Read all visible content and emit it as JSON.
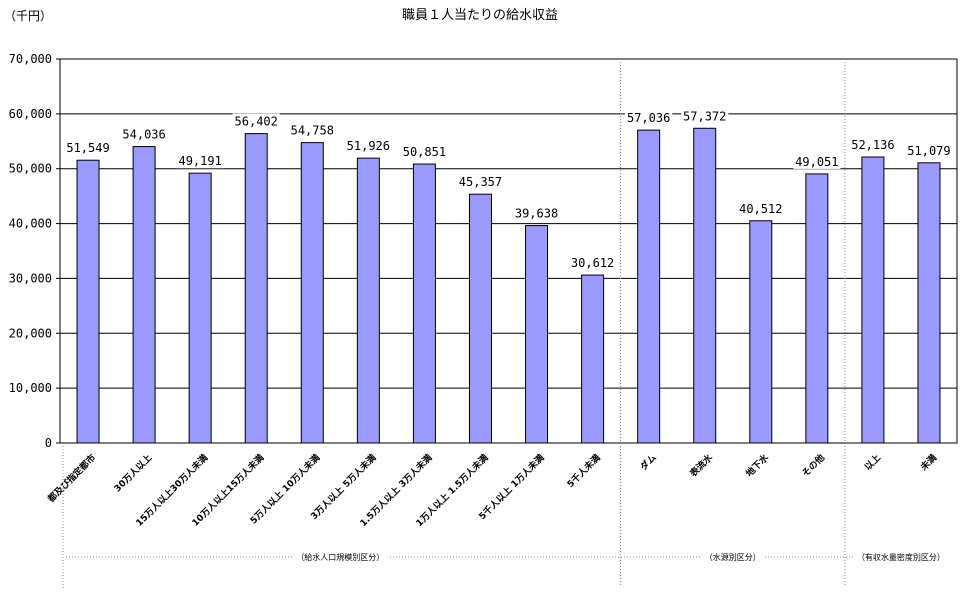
{
  "chart_data": {
    "type": "bar",
    "title": "職員１人当たりの給水収益",
    "unit_label": "（千円）",
    "ylim": [
      0,
      70000
    ],
    "y_ticks": [
      "0",
      "10,000",
      "20,000",
      "30,000",
      "40,000",
      "50,000",
      "60,000",
      "70,000"
    ],
    "grid": true,
    "bar_color": "#9999ff",
    "categories": [
      "都及び指定都市",
      "30万人以上",
      "15万人以上30万人未満",
      "10万人以上15万人未満",
      "5万人以上 10万人未満",
      "3万人以上 5万人未満",
      "1.5万人以上 3万人未満",
      "1万人以上 1.5万人未満",
      "5千人以上 1万人未満",
      "5千人未満",
      "ダム",
      "表流水",
      "地下水",
      "その他",
      "以上",
      "未満"
    ],
    "values": [
      51549,
      54036,
      49191,
      56402,
      54758,
      51926,
      50851,
      45357,
      39638,
      30612,
      57036,
      57372,
      40512,
      49051,
      52136,
      51079
    ],
    "value_labels": [
      "51,549",
      "54,036",
      "49,191",
      "56,402",
      "54,758",
      "51,926",
      "50,851",
      "45,357",
      "39,638",
      "30,612",
      "57,036",
      "57,372",
      "40,512",
      "49,051",
      "52,136",
      "51,079"
    ],
    "groups": [
      {
        "label": "（給水人口規模別区分）",
        "start": 0,
        "end": 9
      },
      {
        "label": "（水源別区分）",
        "start": 10,
        "end": 13
      },
      {
        "label": "（有収水量密度別区分）",
        "start": 14,
        "end": 15
      }
    ]
  }
}
